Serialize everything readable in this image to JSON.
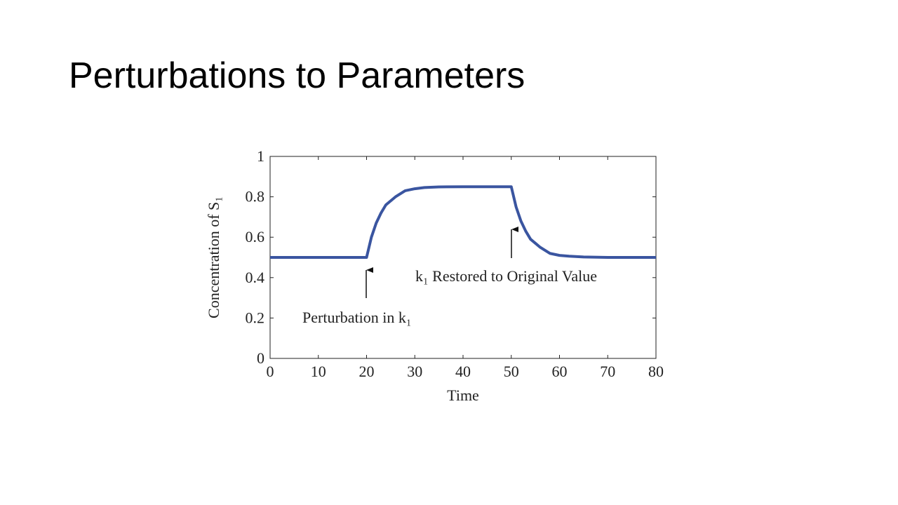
{
  "title": "Perturbations to Parameters",
  "chart_data": {
    "type": "line",
    "xlabel": "Time",
    "ylabel": "Concentration of S₁",
    "annotations": [
      "Perturbation in k₁",
      "k₁ Restored to Original Value"
    ],
    "x": [
      0,
      20,
      21,
      22,
      23,
      24,
      25,
      26,
      28,
      30,
      32,
      35,
      40,
      45,
      50,
      51,
      52,
      53,
      54,
      55,
      56,
      58,
      60,
      62,
      65,
      70,
      80
    ],
    "values": [
      0.5,
      0.5,
      0.6,
      0.67,
      0.72,
      0.76,
      0.78,
      0.8,
      0.83,
      0.84,
      0.846,
      0.849,
      0.85,
      0.85,
      0.85,
      0.75,
      0.68,
      0.63,
      0.59,
      0.57,
      0.55,
      0.52,
      0.51,
      0.506,
      0.502,
      0.5,
      0.5
    ],
    "color": "#3a55a0",
    "xlim": [
      0,
      80
    ],
    "xticks": [
      0,
      10,
      20,
      30,
      40,
      50,
      60,
      70,
      80
    ],
    "ylim": [
      0,
      1
    ],
    "yticks": [
      0,
      0.2,
      0.4,
      0.6,
      0.8,
      1
    ],
    "grid": false
  }
}
